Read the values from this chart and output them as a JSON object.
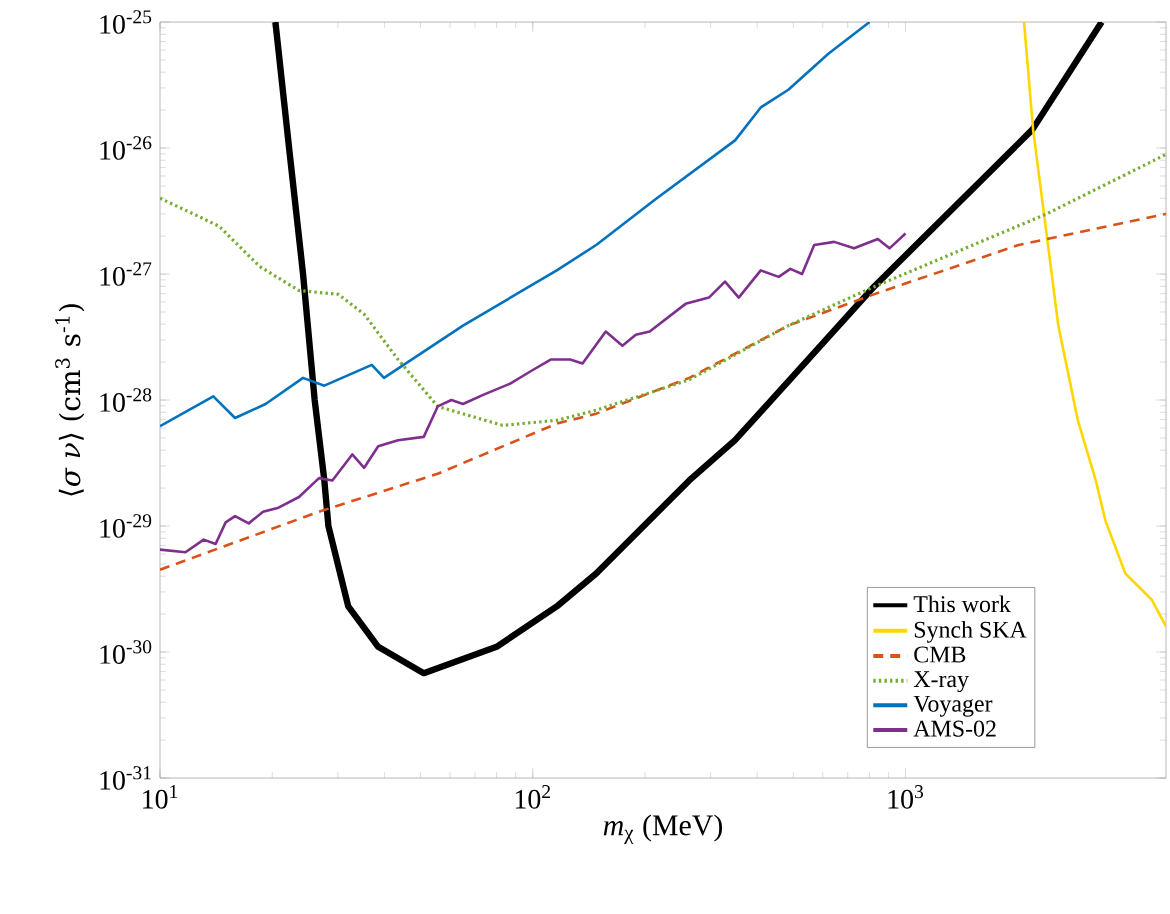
{
  "chart_data": {
    "type": "line",
    "xlabel": "*m*$_{χ}$ (MeV)",
    "ylabel": "⟨*σ ν*⟩ (cm$^{3}$ s$^{-1}$)",
    "log": "xy",
    "grid": false,
    "legend": "bottom right",
    "marker": "none",
    "xlim": [
      10,
      5000
    ],
    "ylim": [
      1e-31,
      1e-25
    ],
    "xticks": [
      {
        "value": 10,
        "label": "10$^{1}$"
      },
      {
        "value": 100,
        "label": "10$^{2}$"
      },
      {
        "value": 1000,
        "label": "10$^{3}$"
      }
    ],
    "yticks": [
      {
        "value": 1e-31,
        "label": "10$^{-31}$"
      },
      {
        "value": 1e-30,
        "label": "10$^{-30}$"
      },
      {
        "value": 1e-29,
        "label": "10$^{-29}$"
      },
      {
        "value": 1e-28,
        "label": "10$^{-28}$"
      },
      {
        "value": 1e-27,
        "label": "10$^{-27}$"
      },
      {
        "value": 1e-26,
        "label": "10$^{-26}$"
      },
      {
        "value": 1e-25,
        "label": "10$^{-25}$"
      }
    ],
    "series": [
      {
        "name": "This work",
        "color": "#000000",
        "line_style": "solid",
        "x": [
          20.4,
          22.2,
          24.2,
          26.0,
          27.6,
          28.3,
          32,
          38.5,
          51,
          80,
          116,
          148,
          263,
          349,
          822,
          2190,
          3360
        ],
        "values": [
          1e-25,
          1e-26,
          1e-27,
          1e-28,
          2.3e-29,
          1e-29,
          2.3e-30,
          1.1e-30,
          6.8e-31,
          1.1e-30,
          2.3e-30,
          4.2e-30,
          2.3e-29,
          4.8e-29,
          7.9e-28,
          1.4e-26,
          1e-25
        ]
      },
      {
        "name": "Synch SKA",
        "color": "#ffd700",
        "line_style": "solid",
        "x": [
          2080,
          2200,
          2390,
          2570,
          2900,
          3240,
          3440,
          3890,
          4580,
          5000
        ],
        "values": [
          1e-25,
          1.4e-26,
          2.1e-27,
          3.9e-28,
          6.9e-29,
          2.3e-29,
          1.1e-29,
          4.2e-30,
          2.6e-30,
          1.6e-30
        ]
      },
      {
        "name": "CMB",
        "color": "#d95319",
        "line_style": "dashed",
        "x": [
          10,
          26.7,
          55.6,
          116,
          148,
          263,
          485,
          822,
          2010,
          5000
        ],
        "values": [
          4.5e-30,
          1.3e-29,
          2.6e-29,
          6.5e-29,
          7.8e-29,
          1.5e-28,
          3.9e-28,
          6.9e-28,
          1.7e-27,
          3e-27
        ]
      },
      {
        "name": "X-ray",
        "color": "#77ac30",
        "line_style": "dotted",
        "x": [
          10,
          14.4,
          18.5,
          23.6,
          30.1,
          35.3,
          43.5,
          55.6,
          83,
          116,
          148,
          263,
          485,
          822,
          2390,
          5000
        ],
        "values": [
          4e-27,
          2.4e-27,
          1.15e-27,
          7.4e-28,
          6.9e-28,
          4.8e-28,
          2.1e-28,
          8.9e-29,
          6.3e-29,
          6.9e-29,
          8.3e-29,
          1.45e-28,
          3.9e-28,
          7.9e-28,
          3e-27,
          8.9e-27
        ]
      },
      {
        "name": "Voyager",
        "color": "#0072bd",
        "line_style": "solid",
        "x": [
          10,
          13.9,
          15.9,
          19.2,
          24.2,
          27.6,
          37,
          39.9,
          65,
          116,
          148,
          213,
          349,
          409,
          485,
          621,
          801
        ],
        "values": [
          6.2e-29,
          1.07e-28,
          7.2e-29,
          9.3e-29,
          1.5e-28,
          1.3e-28,
          1.9e-28,
          1.5e-28,
          3.9e-28,
          1.07e-27,
          1.7e-27,
          3.9e-27,
          1.15e-26,
          2.1e-26,
          2.9e-26,
          5.6e-26,
          1e-25
        ]
      },
      {
        "name": "AMS-02",
        "color": "#7e2f8e",
        "line_style": "solid",
        "x": [
          10,
          11.7,
          13.1,
          14.1,
          15,
          15.9,
          17.3,
          18.9,
          20.8,
          23.6,
          26.7,
          29,
          32.8,
          35.3,
          38.5,
          43.5,
          51,
          55.6,
          60.5,
          65,
          73.6,
          87,
          99,
          112,
          126,
          136,
          157,
          174,
          189,
          206,
          257,
          297,
          328,
          357,
          409,
          457,
          491,
          528,
          569,
          644,
          728,
          843,
          906,
          1000
        ],
        "values": [
          6.5e-30,
          6.2e-30,
          7.8e-30,
          7.2e-30,
          1.07e-29,
          1.2e-29,
          1.05e-29,
          1.3e-29,
          1.4e-29,
          1.7e-29,
          2.4e-29,
          2.3e-29,
          3.7e-29,
          2.9e-29,
          4.3e-29,
          4.8e-29,
          5.1e-29,
          8.9e-29,
          1e-28,
          9.3e-29,
          1.1e-28,
          1.35e-28,
          1.7e-28,
          2.1e-28,
          2.1e-28,
          1.95e-28,
          3.5e-28,
          2.7e-28,
          3.3e-28,
          3.5e-28,
          5.8e-28,
          6.5e-28,
          8.7e-28,
          6.5e-28,
          1.07e-27,
          9.5e-28,
          1.1e-27,
          1e-27,
          1.7e-27,
          1.8e-27,
          1.6e-27,
          1.9e-27,
          1.6e-27,
          2.1e-27
        ]
      }
    ]
  }
}
